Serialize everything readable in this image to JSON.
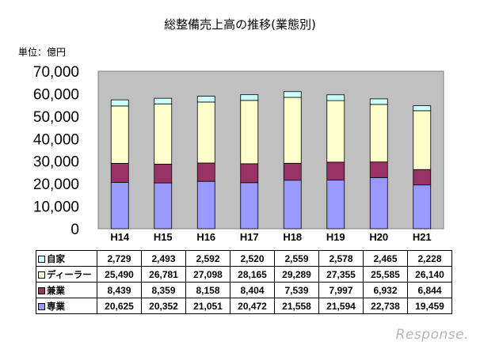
{
  "chart_data": {
    "type": "bar",
    "stacked": true,
    "title": "総整備売上高の推移(業態別)",
    "unit_label": "単位：億円",
    "categories": [
      "H14",
      "H15",
      "H16",
      "H17",
      "H18",
      "H19",
      "H20",
      "H21"
    ],
    "ylim": [
      0,
      70000
    ],
    "yticks": [
      "0",
      "10,000",
      "20,000",
      "30,000",
      "40,000",
      "50,000",
      "60,000",
      "70,000"
    ],
    "series": [
      {
        "name": "専業",
        "color": "#9999ff",
        "values": [
          20625,
          20352,
          21051,
          20472,
          21558,
          21594,
          22738,
          19459
        ],
        "labels": [
          "20,625",
          "20,352",
          "21,051",
          "20,472",
          "21,558",
          "21,594",
          "22,738",
          "19,459"
        ]
      },
      {
        "name": "兼業",
        "color": "#993366",
        "values": [
          8439,
          8359,
          8158,
          8404,
          7539,
          7997,
          6932,
          6844
        ],
        "labels": [
          "8,439",
          "8,359",
          "8,158",
          "8,404",
          "7,539",
          "7,997",
          "6,932",
          "6,844"
        ]
      },
      {
        "name": "ディーラー",
        "color": "#ffffcc",
        "values": [
          25490,
          26781,
          27098,
          28165,
          29289,
          27355,
          25585,
          26140
        ],
        "labels": [
          "25,490",
          "26,781",
          "27,098",
          "28,165",
          "29,289",
          "27,355",
          "25,585",
          "26,140"
        ]
      },
      {
        "name": "自家",
        "color": "#ccffff",
        "values": [
          2729,
          2493,
          2592,
          2520,
          2559,
          2578,
          2465,
          2228
        ],
        "labels": [
          "2,729",
          "2,493",
          "2,592",
          "2,520",
          "2,559",
          "2,578",
          "2,465",
          "2,228"
        ]
      }
    ],
    "plot_background": "#c0c0c0",
    "grid": false
  },
  "watermark": "Response."
}
